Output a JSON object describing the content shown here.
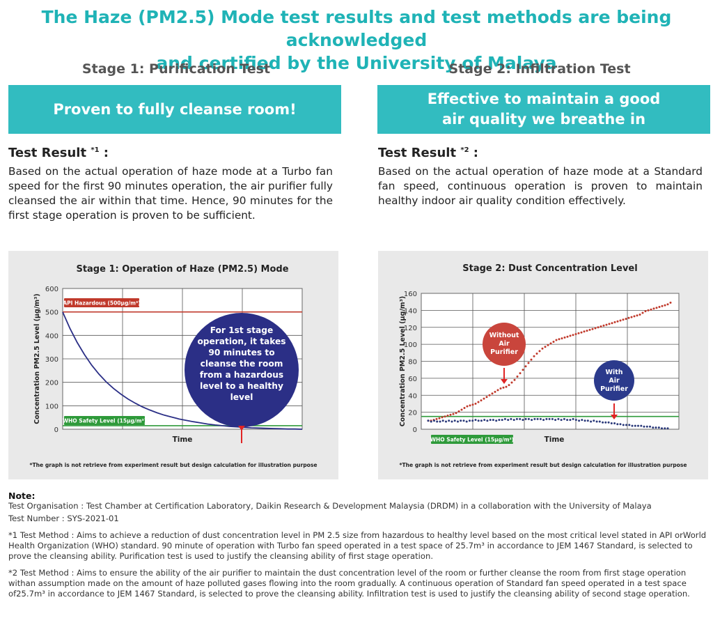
{
  "title": {
    "line1": "The Haze (PM2.5) Mode test results and test methods are being acknowledged",
    "line2": "and certified by the University of Malaya"
  },
  "stage1": {
    "heading": "Stage 1: Purification Test",
    "banner": "Proven to fully cleanse room!",
    "result_label": "Test Result",
    "result_mark": "*1",
    "result_suffix": " :",
    "result_text": "Based on the actual operation of haze mode at a Turbo fan speed for the first 90 minutes operation, the air purifier fully cleansed the air within that time. Hence, 90 minutes for the first stage operation is proven to be sufficient."
  },
  "stage2": {
    "heading": "Stage 2: Infiltration Test",
    "banner_line1": "Effective to maintain a good",
    "banner_line2": "air quality we breathe in",
    "result_label": "Test Result",
    "result_mark": "*2",
    "result_suffix": " :",
    "result_text": "Based on the actual operation of haze mode at a Standard fan speed, continuous operation is proven to maintain healthy indoor air quality condition effectively."
  },
  "chart_data": [
    {
      "type": "line",
      "title": "Stage 1: Operation of Haze (PM2.5) Mode",
      "xlabel": "Time",
      "ylabel": "Concentration PM2.5 Level (μg/m³)",
      "ylim": [
        0,
        600
      ],
      "yticks": [
        "0",
        "100",
        "200",
        "300",
        "400",
        "500",
        "600"
      ],
      "grid": true,
      "series": [
        {
          "values": [
            500,
            430,
            370,
            318,
            273,
            235,
            202,
            174,
            150,
            129,
            111,
            95,
            82,
            70,
            60,
            52,
            44,
            38,
            32,
            27,
            22,
            18,
            15,
            12,
            10,
            8,
            6,
            5,
            4,
            3,
            2,
            1,
            1,
            0
          ],
          "color": "#2b2f86"
        }
      ],
      "reference_lines": [
        {
          "label": "API Hazardous (500μg/m³)",
          "value": 500,
          "color": "#c0392b"
        },
        {
          "label": "WHO Safety Level (15μg/m³)",
          "value": 15,
          "color": "#2e9a3a"
        }
      ],
      "callout": [
        "For 1st stage",
        "operation, it takes",
        "90 minutes to",
        "cleanse the room",
        "from a hazardous",
        "level to a healthy",
        "level"
      ],
      "footnote": "*The graph is not retrieve from experiment result but design calculation for illustration purpose"
    },
    {
      "type": "scatter",
      "title": "Stage 2: Dust Concentration Level",
      "xlabel": "Time",
      "ylabel": "Concentration PM2.5 Level (μg/m³)",
      "ylim": [
        0,
        160
      ],
      "yticks": [
        "0",
        "20",
        "40",
        "60",
        "80",
        "100",
        "120",
        "140",
        "160"
      ],
      "grid": true,
      "series": [
        {
          "name": "Without Air Purifier",
          "color": "#c0392b",
          "values": [
            10,
            10,
            11,
            12,
            13,
            14,
            15,
            16,
            17,
            18,
            19,
            21,
            23,
            25,
            27,
            28,
            29,
            30,
            32,
            34,
            36,
            38,
            40,
            42,
            44,
            46,
            48,
            49,
            50,
            52,
            55,
            58,
            62,
            66,
            70,
            74,
            78,
            82,
            86,
            89,
            92,
            95,
            97,
            99,
            101,
            103,
            105,
            106,
            107,
            108,
            109,
            110,
            111,
            112,
            113,
            114,
            115,
            116,
            117,
            118,
            119,
            120,
            121,
            122,
            123,
            124,
            125,
            126,
            127,
            128,
            129,
            130,
            131,
            132,
            133,
            134,
            135,
            137,
            139,
            140,
            141,
            142,
            143,
            144,
            145,
            146,
            147,
            149
          ]
        },
        {
          "name": "With Air Purifier",
          "color": "#2b3a7a",
          "values": [
            10,
            9,
            10,
            9,
            9,
            10,
            9,
            10,
            9,
            10,
            9,
            10,
            10,
            9,
            10,
            10,
            11,
            10,
            10,
            11,
            10,
            11,
            11,
            10,
            11,
            11,
            12,
            11,
            12,
            11,
            12,
            12,
            11,
            12,
            12,
            11,
            12,
            12,
            12,
            11,
            12,
            12,
            12,
            11,
            12,
            11,
            12,
            11,
            11,
            12,
            11,
            10,
            11,
            10,
            10,
            9,
            10,
            9,
            9,
            8,
            8,
            8,
            7,
            7,
            6,
            6,
            5,
            5,
            5,
            4,
            4,
            4,
            4,
            3,
            3,
            3,
            2,
            2,
            2,
            1,
            1,
            1
          ]
        }
      ],
      "reference_lines": [
        {
          "label": "WHO Safety Level (15μg/m³)",
          "value": 15,
          "color": "#2e9a3a"
        }
      ],
      "callouts": [
        {
          "lines": [
            "Without",
            "Air",
            "Purifier"
          ],
          "color": "#c9453c"
        },
        {
          "lines": [
            "With",
            "Air",
            "Purifier"
          ],
          "color": "#2b3a8c"
        }
      ],
      "footnote": "*The graph is not retrieve from experiment result but design calculation for illustration purpose"
    }
  ],
  "notes": {
    "heading": "Note:",
    "org": "Test Organisation : Test Chamber at Certification Laboratory, Daikin Research & Development Malaysia (DRDM) in a collaboration with the University of Malaya",
    "number": "Test Number : SYS-2021-01",
    "method1": "*1  Test Method : Aims to achieve a reduction of dust concentration level in PM 2.5 size from hazardous to healthy level based on the most critical level stated in API orWorld Health Organization (WHO) standard. 90 minute of operation with Turbo fan speed operated in a test space of 25.7m³ in accordance to JEM 1467 Standard, is selected to prove the cleansing ability. Purification test is used to justify the cleansing ability of first stage operation.",
    "method2": "*2 Test Method : Aims to ensure the ability of the air purifier to maintain the dust concentration level of the room or further cleanse the room from first stage operation withan assumption made on the amount of haze polluted gases flowing into the room gradually. A continuous operation of Standard fan speed operated in a test space of25.7m³ in accordance to JEM 1467 Standard, is selected to prove the cleansing ability. Infiltration test is used to justify the cleansing ability of second stage operation."
  }
}
